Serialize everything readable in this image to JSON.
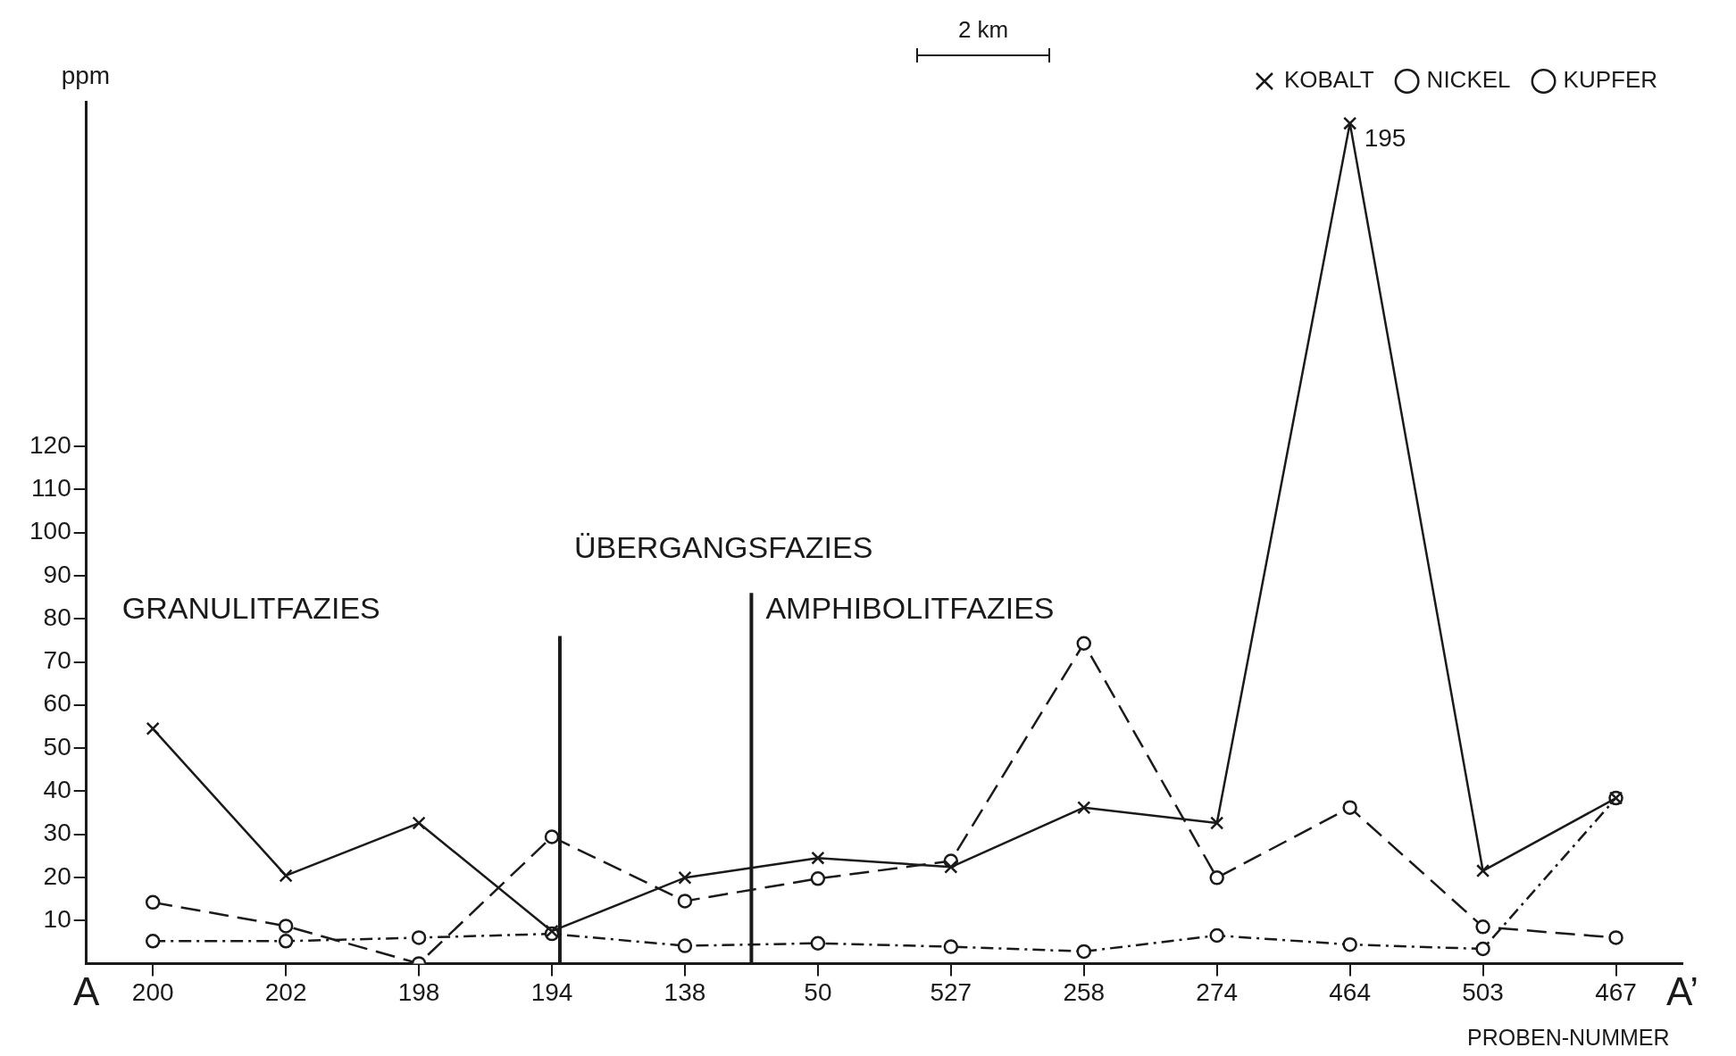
{
  "chart_data": {
    "type": "line",
    "ylabel": "ppm",
    "xlabel": "PROBEN-NUMMER",
    "categories": [
      "200",
      "202",
      "198",
      "194",
      "138",
      "50",
      "527",
      "258",
      "274",
      "464",
      "503",
      "467"
    ],
    "ylim": [
      0,
      200
    ],
    "yticks": [
      10,
      20,
      30,
      40,
      50,
      60,
      70,
      80,
      90,
      100,
      110,
      120
    ],
    "series": [
      {
        "name": "KOBALT",
        "color": "#1a1a1a",
        "marker": "cross",
        "line_style": "solid",
        "values": [
          54.5,
          20.4,
          32.6,
          7.5,
          19.9,
          24.5,
          22.4,
          36.2,
          32.6,
          195,
          21.5,
          38.4
        ],
        "value_labels": [
          null,
          null,
          null,
          null,
          null,
          null,
          null,
          null,
          null,
          "195",
          null,
          null
        ]
      },
      {
        "name": "NICKEL",
        "color": "#1a1a1a",
        "marker": "circle",
        "line_style": "dashed",
        "values": [
          14.2,
          8.7,
          0,
          29.4,
          14.5,
          19.7,
          23.8,
          74.3,
          19.9,
          36.2,
          8.5,
          6.0
        ]
      },
      {
        "name": "KUPFER",
        "color": "#1a1a1a",
        "marker": "circle",
        "line_style": "dotted",
        "values": [
          5.2,
          5.2,
          6.0,
          6.9,
          4.1,
          4.7,
          3.9,
          2.8,
          6.5,
          4.4,
          3.4,
          38.4
        ]
      }
    ],
    "ref_lines": [
      {
        "axis": "x",
        "value": "194",
        "color": "#1a1a1a"
      },
      {
        "axis": "x",
        "value": "138",
        "color": "#1a1a1a"
      }
    ],
    "annotations": [
      "A",
      "A’",
      "GRANULITFAZIES",
      "ÜBERGANGSFAZIES",
      "AMPHIBOLITFAZIES",
      "2 km"
    ],
    "grid": false,
    "legend": "top right"
  }
}
